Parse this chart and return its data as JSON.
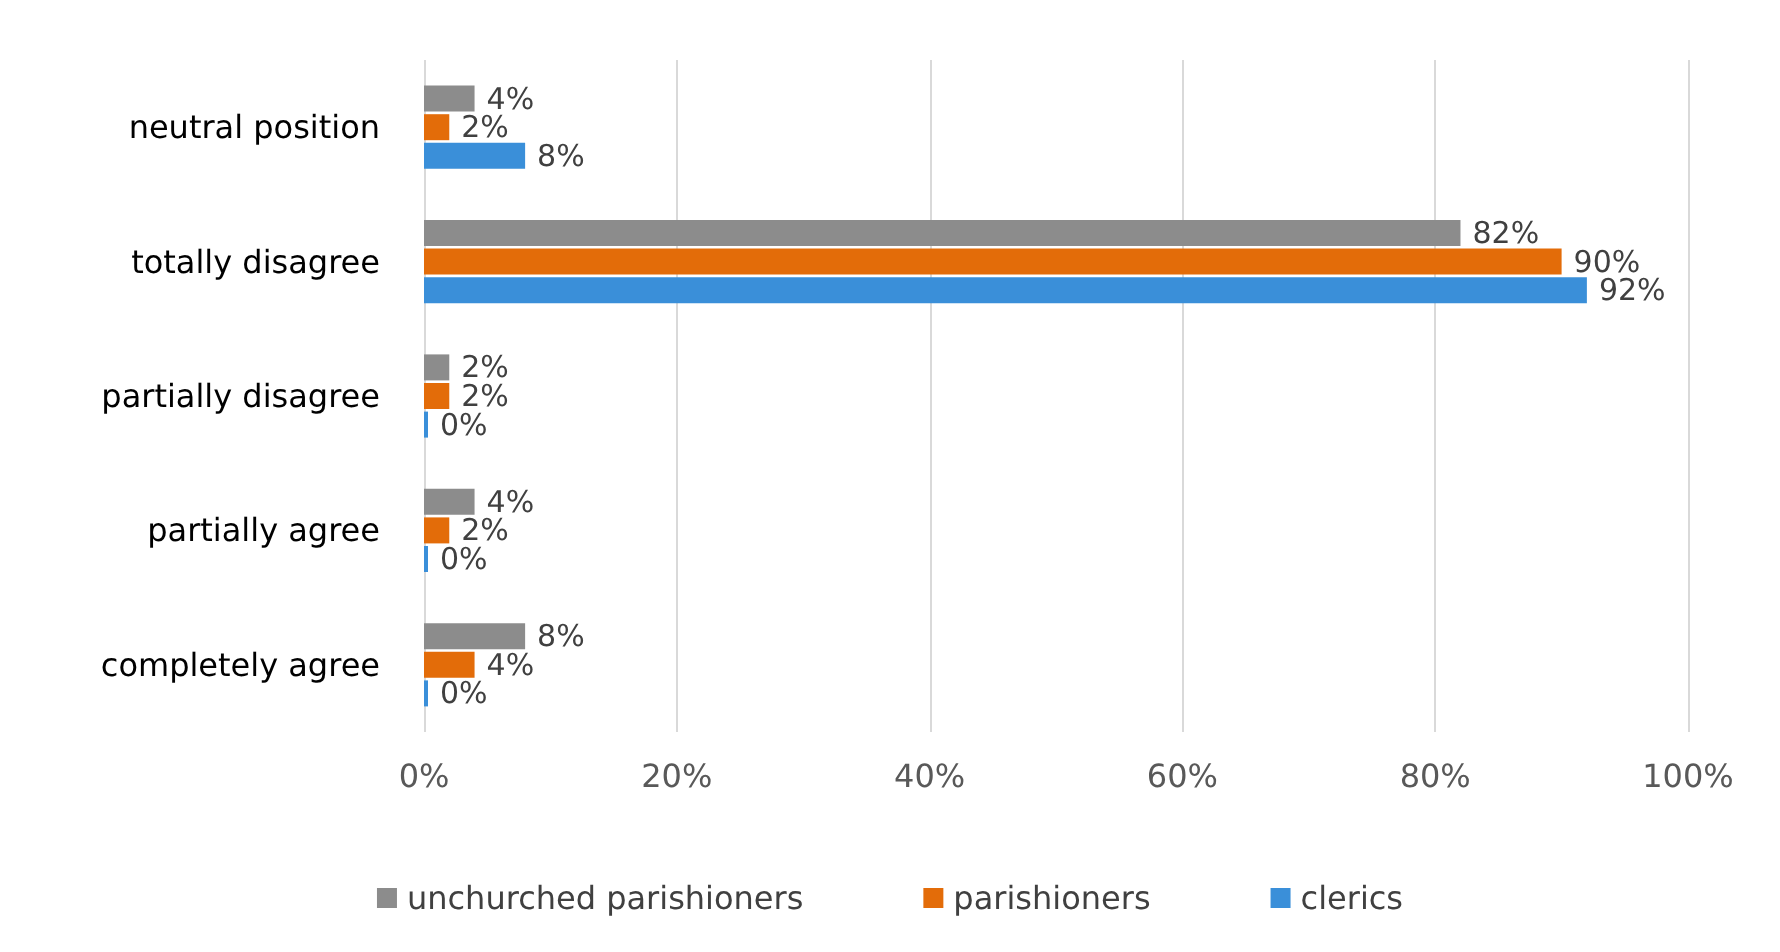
{
  "chart_data": {
    "type": "bar",
    "orientation": "horizontal",
    "categories": [
      "neutral position",
      "totally disagree",
      "partially disagree",
      "partially agree",
      "completely agree"
    ],
    "series": [
      {
        "name": "unchurched parishioners",
        "color": "#8c8c8c",
        "values": [
          4,
          82,
          2,
          4,
          8
        ],
        "value_labels": [
          "4%",
          "82%",
          "2%",
          "4%",
          "8%"
        ]
      },
      {
        "name": "parishioners",
        "color": "#e36c09",
        "values": [
          2,
          90,
          2,
          2,
          4
        ],
        "value_labels": [
          "2%",
          "90%",
          "2%",
          "2%",
          "4%"
        ]
      },
      {
        "name": "clerics",
        "color": "#3a8fd9",
        "values": [
          8,
          92,
          0,
          0,
          0
        ],
        "value_labels": [
          "8%",
          "92%",
          "0%",
          "0%",
          "0%"
        ]
      }
    ],
    "xlim": [
      0,
      100
    ],
    "xticks": [
      {
        "value": 0,
        "label": "0%"
      },
      {
        "value": 20,
        "label": "20%"
      },
      {
        "value": 40,
        "label": "40%"
      },
      {
        "value": 60,
        "label": "60%"
      },
      {
        "value": 80,
        "label": "80%"
      },
      {
        "value": 100,
        "label": "100%"
      }
    ],
    "grid": "x",
    "legend": "bottom"
  }
}
